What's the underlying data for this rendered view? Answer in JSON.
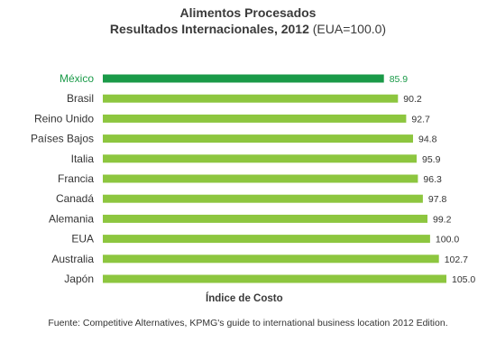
{
  "chart_data": {
    "type": "bar",
    "orientation": "horizontal",
    "title_line1": "Alimentos Procesados",
    "title_line2_bold": "Resultados Internacionales, 2012",
    "title_line2_rest": " (EUA=100.0)",
    "xlabel": "Índice de Costo",
    "categories": [
      "México",
      "Brasil",
      "Reino Unido",
      "Países Bajos",
      "Italia",
      "Francia",
      "Canadá",
      "Alemania",
      "EUA",
      "Australia",
      "Japón"
    ],
    "values": [
      85.9,
      90.2,
      92.7,
      94.8,
      95.9,
      96.3,
      97.8,
      99.2,
      100.0,
      102.7,
      105.0
    ],
    "value_labels": [
      "85.9",
      "90.2",
      "92.7",
      "94.8",
      "95.9",
      "96.3",
      "97.8",
      "99.2",
      "100.0",
      "102.7",
      "105.0"
    ],
    "highlight_category": "México",
    "colors": {
      "bar": "#8dc63f",
      "highlight": "#1a9a48",
      "highlight_text": "#1a9a48"
    },
    "grid": false,
    "legend": "none"
  },
  "source_text": "Fuente: Competitive Alternatives,  KPMG's guide to international business location 2012 Edition."
}
